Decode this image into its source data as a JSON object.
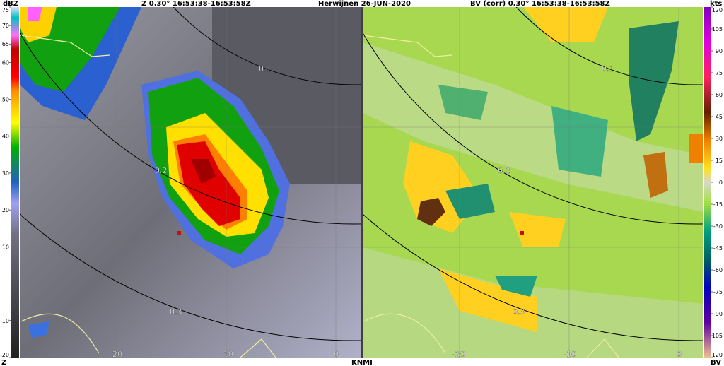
{
  "header": {
    "left_title": "Z  0.30°  16:53:38-16:53:58Z",
    "center_title": "Herwijnen   26-JUN-2020",
    "right_title": "BV (corr)  0.30°  16:53:38-16:53:58Z"
  },
  "left_scale": {
    "unit": "dBZ",
    "ticks": [
      75,
      70,
      65,
      60,
      50,
      40,
      30,
      20,
      10,
      -10,
      -20
    ],
    "footer": "Z"
  },
  "right_scale": {
    "unit": "kts",
    "ticks": [
      120,
      105,
      90,
      75,
      60,
      45,
      30,
      15,
      0,
      -15,
      -30,
      -45,
      -60,
      -75,
      -90,
      -105,
      -120
    ],
    "footer": "BV"
  },
  "left_panel": {
    "range_labels": [
      "0.1",
      "0.2",
      "0.3"
    ],
    "x_labels": [
      "-20",
      "-10",
      "0"
    ]
  },
  "right_panel": {
    "range_labels": [
      "0.1",
      "0.2",
      "0.3"
    ],
    "x_labels": [
      "-20",
      "-10",
      "0"
    ]
  },
  "footer": "KNMI"
}
